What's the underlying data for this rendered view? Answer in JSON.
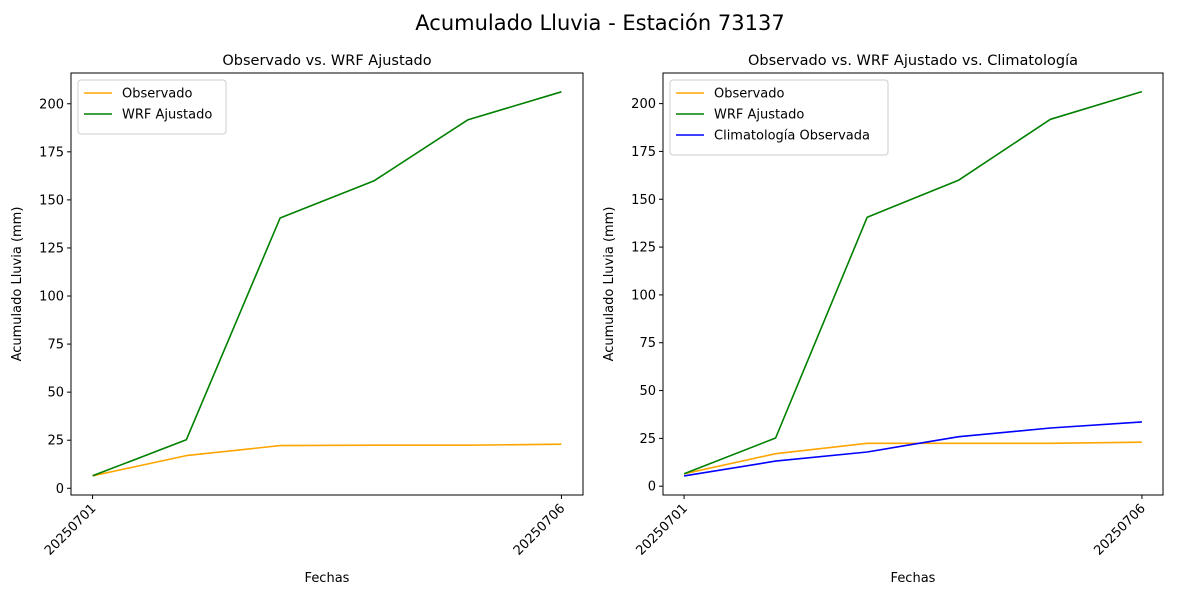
{
  "figure": {
    "suptitle": "Acumulado Lluvia - Estación 73137"
  },
  "colors": {
    "observado": "#ffa500",
    "wrf": "#008000",
    "climatologia": "#0000ff"
  },
  "chart_data": [
    {
      "type": "line",
      "title": "Observado vs. WRF Ajustado",
      "xlabel": "Fechas",
      "ylabel": "Acumulado Lluvia (mm)",
      "x": [
        1,
        2,
        3,
        4,
        5,
        6
      ],
      "xticks": [
        1,
        6
      ],
      "xtick_labels": [
        "20250701",
        "20250706"
      ],
      "xlim": [
        0.77,
        6.23
      ],
      "ylim": [
        -3.5,
        216
      ],
      "yticks": [
        0,
        25,
        50,
        75,
        100,
        125,
        150,
        175,
        200
      ],
      "yticks_text": [
        "0",
        "25",
        "50",
        "75",
        "100",
        "125",
        "150",
        "175",
        "200"
      ],
      "legend_position": "upper-left",
      "series": [
        {
          "name": "Observado",
          "color_key": "observado",
          "values": [
            6.5,
            17.0,
            22.2,
            22.4,
            22.4,
            22.9
          ]
        },
        {
          "name": "WRF Ajustado",
          "color_key": "wrf",
          "values": [
            6.5,
            25.2,
            140.6,
            159.9,
            191.6,
            206.2
          ]
        }
      ]
    },
    {
      "type": "line",
      "title": "Observado vs. WRF Ajustado vs. Climatología",
      "xlabel": "Fechas",
      "ylabel": "Acumulado Lluvia (mm)",
      "x": [
        1,
        2,
        3,
        4,
        5,
        6
      ],
      "xticks": [
        1,
        6
      ],
      "xtick_labels": [
        "20250701",
        "20250706"
      ],
      "xlim": [
        0.77,
        6.23
      ],
      "ylim": [
        -4.6,
        216
      ],
      "yticks": [
        0,
        25,
        50,
        75,
        100,
        125,
        150,
        175,
        200
      ],
      "yticks_text": [
        "0",
        "25",
        "50",
        "75",
        "100",
        "125",
        "150",
        "175",
        "200"
      ],
      "legend_position": "upper-left",
      "series": [
        {
          "name": "Observado",
          "color_key": "observado",
          "values": [
            6.5,
            17.0,
            22.4,
            22.4,
            22.4,
            23.0
          ]
        },
        {
          "name": "WRF Ajustado",
          "color_key": "wrf",
          "values": [
            6.5,
            25.2,
            140.6,
            160.0,
            191.8,
            206.3
          ]
        },
        {
          "name": "Climatología Observada",
          "color_key": "climatologia",
          "values": [
            5.4,
            13.1,
            17.9,
            25.9,
            30.4,
            33.6
          ]
        }
      ]
    }
  ]
}
